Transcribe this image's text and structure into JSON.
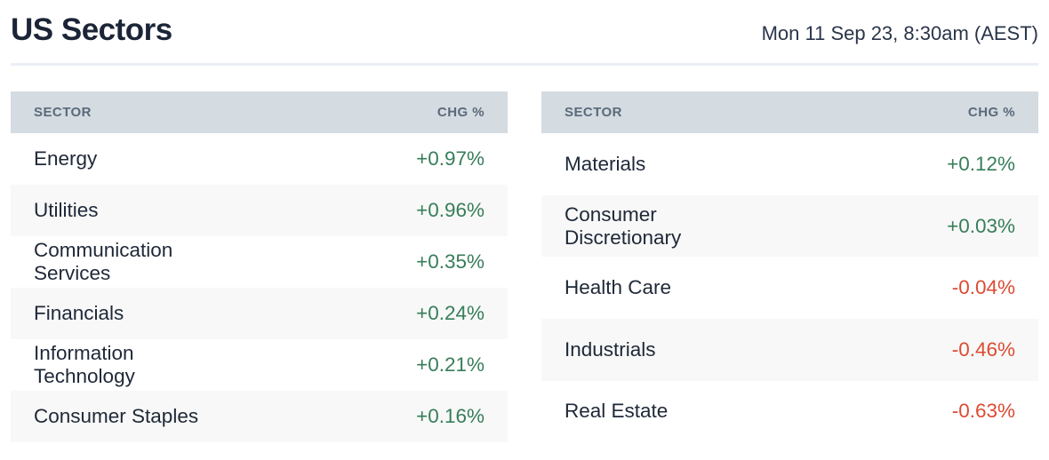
{
  "page": {
    "title": "US Sectors",
    "timestamp": "Mon 11 Sep 23, 8:30am (AEST)"
  },
  "colors": {
    "title_color": "#1c2537",
    "date_color": "#2a3549",
    "divider_color": "#e9eef6",
    "header_bg": "#d4dbe1",
    "header_text": "#5a6a7a",
    "name_color": "#1f2838",
    "row_alt_bg": "#f7f8f7",
    "positive_color": "#377d5a",
    "negative_color": "#dc4b32"
  },
  "tables": [
    {
      "columns": [
        "SECTOR",
        "CHG %"
      ],
      "rows": [
        {
          "sector": "Energy",
          "chg": "+0.97%",
          "direction": "up"
        },
        {
          "sector": "Utilities",
          "chg": "+0.96%",
          "direction": "up"
        },
        {
          "sector": "Communication Services",
          "chg": "+0.35%",
          "direction": "up"
        },
        {
          "sector": "Financials",
          "chg": "+0.24%",
          "direction": "up"
        },
        {
          "sector": "Information Technology",
          "chg": "+0.21%",
          "direction": "up"
        },
        {
          "sector": "Consumer Staples",
          "chg": "+0.16%",
          "direction": "up"
        }
      ]
    },
    {
      "columns": [
        "SECTOR",
        "CHG %"
      ],
      "rows": [
        {
          "sector": "Materials",
          "chg": "+0.12%",
          "direction": "up"
        },
        {
          "sector": "Consumer Discretionary",
          "chg": "+0.03%",
          "direction": "up"
        },
        {
          "sector": "Health Care",
          "chg": "-0.04%",
          "direction": "down"
        },
        {
          "sector": "Industrials",
          "chg": "-0.46%",
          "direction": "down"
        },
        {
          "sector": "Real Estate",
          "chg": "-0.63%",
          "direction": "down"
        }
      ]
    }
  ],
  "chart_data": [
    {
      "type": "table",
      "title": "US Sectors (left table)",
      "columns": [
        "SECTOR",
        "CHG %"
      ],
      "rows": [
        [
          "Energy",
          0.97
        ],
        [
          "Utilities",
          0.96
        ],
        [
          "Communication Services",
          0.35
        ],
        [
          "Financials",
          0.24
        ],
        [
          "Information Technology",
          0.21
        ],
        [
          "Consumer Staples",
          0.16
        ]
      ],
      "units": "percent change"
    },
    {
      "type": "table",
      "title": "US Sectors (right table)",
      "columns": [
        "SECTOR",
        "CHG %"
      ],
      "rows": [
        [
          "Materials",
          0.12
        ],
        [
          "Consumer Discretionary",
          0.03
        ],
        [
          "Health Care",
          -0.04
        ],
        [
          "Industrials",
          -0.46
        ],
        [
          "Real Estate",
          -0.63
        ]
      ],
      "units": "percent change"
    }
  ]
}
